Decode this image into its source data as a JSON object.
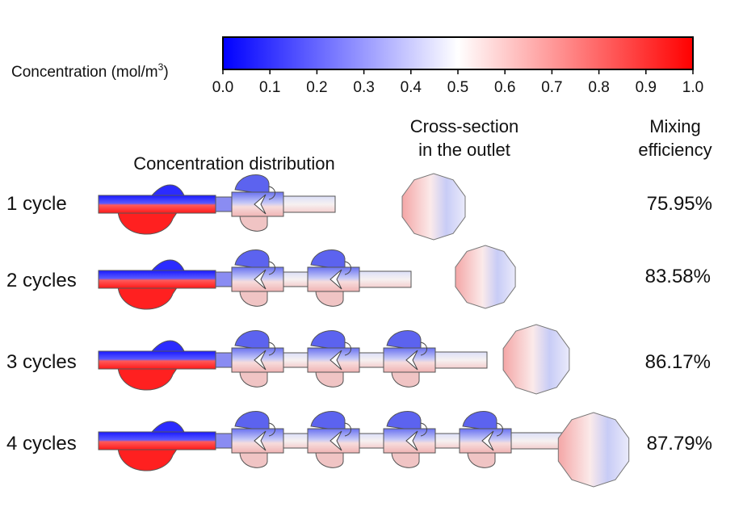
{
  "colorbar": {
    "label_prefix": "Concentration (mol/m",
    "label_sup": "3",
    "label_suffix": ")",
    "ticks": [
      "0.0",
      "0.1",
      "0.2",
      "0.3",
      "0.4",
      "0.5",
      "0.6",
      "0.7",
      "0.8",
      "0.9",
      "1.0"
    ],
    "min": 0.0,
    "max": 1.0,
    "colors": {
      "low": "#0000ff",
      "mid": "#ffffff",
      "high": "#ff0000"
    }
  },
  "headers": {
    "distribution": "Concentration distribution",
    "cross_line1": "Cross-section",
    "cross_line2": "in the outlet",
    "mixing_line1": "Mixing",
    "mixing_line2": "efficiency"
  },
  "rows": [
    {
      "label": "1 cycle",
      "cycles": 1,
      "efficiency": "75.95%"
    },
    {
      "label": "2 cycles",
      "cycles": 2,
      "efficiency": "83.58%"
    },
    {
      "label": "3 cycles",
      "cycles": 3,
      "efficiency": "86.17%"
    },
    {
      "label": "4 cycles",
      "cycles": 4,
      "efficiency": "87.79%"
    }
  ]
}
